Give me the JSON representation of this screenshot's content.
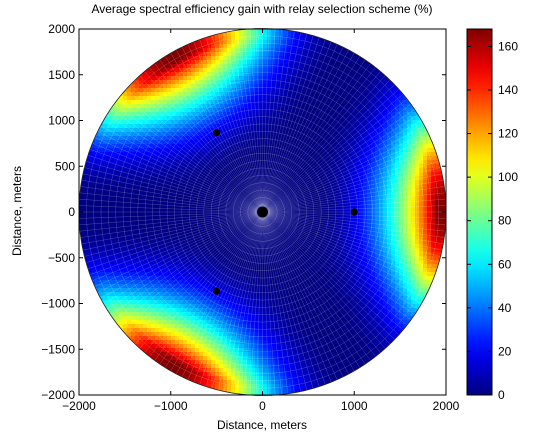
{
  "chart_data": {
    "type": "heatmap",
    "title": "Average spectral efficiency gain with relay selection scheme (%)",
    "xlabel": "Distance, meters",
    "ylabel": "Distance, meters",
    "xlim": [
      -2000,
      2000
    ],
    "ylim": [
      -2000,
      2000
    ],
    "xticks": [
      -2000,
      -1000,
      0,
      1000,
      2000
    ],
    "yticks": [
      -2000,
      -1500,
      -1000,
      -500,
      0,
      500,
      1000,
      1500,
      2000
    ],
    "xtick_labels": [
      "−2000",
      "−1000",
      "0",
      "1000",
      "2000"
    ],
    "ytick_labels": [
      "−2000",
      "−1500",
      "−1000",
      "−500",
      "0",
      "500",
      "1000",
      "1500",
      "2000"
    ],
    "cell_radius": 2000,
    "colormap": "jet",
    "colorbar": {
      "range": [
        0,
        168
      ],
      "ticks": [
        0,
        20,
        40,
        60,
        80,
        100,
        120,
        140,
        160
      ],
      "tick_labels": [
        "0",
        "20",
        "40",
        "60",
        "80",
        "100",
        "120",
        "140",
        "160"
      ]
    },
    "peak_gain": 168,
    "peak_angles_deg": [
      0,
      120,
      240
    ],
    "base_station": {
      "x": 0,
      "y": 0
    },
    "relay_stations": [
      {
        "x": 1000,
        "y": 0
      },
      {
        "x": -500,
        "y": 866
      },
      {
        "x": -500,
        "y": -866
      }
    ],
    "grid": false
  }
}
